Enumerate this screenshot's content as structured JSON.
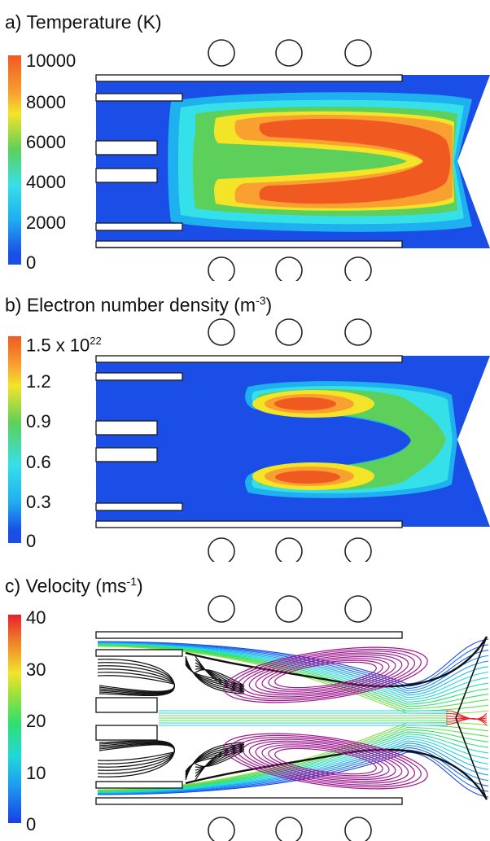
{
  "panels": [
    {
      "id": "a",
      "title": "a) Temperature (K)",
      "ticks": [
        "10000",
        "8000",
        "6000",
        "4000",
        "2000",
        "0"
      ]
    },
    {
      "id": "b",
      "title_main": "b) Electron number density (m",
      "title_sup": "-3",
      "title_end": ")",
      "tick_top_main": "1.5 x 10",
      "tick_top_sup": "22",
      "ticks": [
        "1.2",
        "0.9",
        "0.6",
        "0.3",
        "0"
      ]
    },
    {
      "id": "c",
      "title_main": "c) Velocity (ms",
      "title_sup": "-1",
      "title_end": ")",
      "ticks": [
        "40",
        "30",
        "20",
        "10",
        "0"
      ]
    }
  ],
  "colors": {
    "blue": "#1a4ee6",
    "cyan": "#36e0e8",
    "green": "#5cd05a",
    "yellow": "#f4e428",
    "orange": "#f8a030",
    "red": "#f05a20"
  }
}
